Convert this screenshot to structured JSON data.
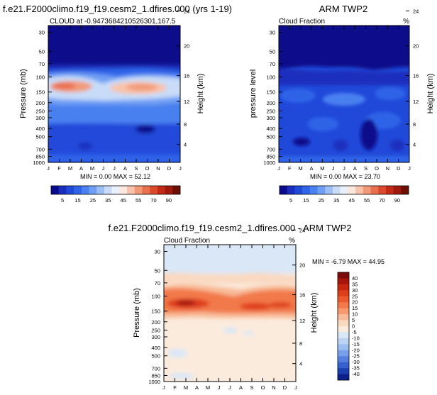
{
  "figure": {
    "titles": {
      "model": "f.e21.F2000climo.f19_f19.cesm2_1.dfires.000 (yrs 1-19)",
      "obs": "ARM TWP2",
      "diff": "f.e21.F2000climo.f19_f19.cesm2_1.dfires.000 - ARM TWP2"
    }
  },
  "chart_data": [
    {
      "type": "heatmap",
      "title": "f.e21.F2000climo.f19_f19.cesm2_1.dfires.000 (yrs 1-19)",
      "subtitle_left": "CLOUD at -0.9473684210526301,167.5",
      "subtitle_right": "",
      "ylabel": "Pressure (mb)",
      "y2label": "Height (km)",
      "x": [
        "J",
        "F",
        "M",
        "A",
        "M",
        "J",
        "J",
        "A",
        "S",
        "O",
        "N",
        "D",
        "J"
      ],
      "pressure_ticks": [
        30,
        50,
        70,
        100,
        150,
        200,
        250,
        300,
        400,
        500,
        700,
        850,
        1000
      ],
      "height_ticks": [
        24,
        20,
        16,
        12,
        8,
        4
      ],
      "stats": "MIN =  0.00 MAX =  52.12",
      "colorbar": {
        "labels": [
          "5",
          "15",
          "25",
          "35",
          "45",
          "55",
          "70",
          "90"
        ],
        "colors": [
          "#0a0a8c",
          "#1a2ebd",
          "#2049d9",
          "#2f63e8",
          "#4a80f0",
          "#6f9ff4",
          "#9dbff6",
          "#c8dcf8",
          "#e8f0fb",
          "#fbe7dc",
          "#f8c3aa",
          "#f29a78",
          "#e9704f",
          "#dc4a2e",
          "#c32a16",
          "#9e1a0c",
          "#6e0f06"
        ]
      }
    },
    {
      "type": "heatmap",
      "title": "ARM TWP2",
      "subtitle_left": "Cloud Fraction",
      "subtitle_right": "%",
      "ylabel": "pressure level",
      "y2label": "Height (km)",
      "x": [
        "J",
        "F",
        "M",
        "A",
        "M",
        "J",
        "J",
        "A",
        "S",
        "O",
        "N",
        "D",
        "J"
      ],
      "pressure_ticks": [
        30,
        50,
        70,
        100,
        150,
        200,
        250,
        300,
        400,
        500,
        700,
        850,
        1000
      ],
      "height_ticks": [
        24,
        20,
        16,
        12,
        8,
        4
      ],
      "stats": "MIN =  0.00 MAX =  23.70",
      "colorbar": {
        "labels": [
          "5",
          "15",
          "25",
          "35",
          "45",
          "55",
          "70",
          "90"
        ],
        "colors": [
          "#0a0a8c",
          "#1a2ebd",
          "#2049d9",
          "#2f63e8",
          "#4a80f0",
          "#6f9ff4",
          "#9dbff6",
          "#c8dcf8",
          "#e8f0fb",
          "#fbe7dc",
          "#f8c3aa",
          "#f29a78",
          "#e9704f",
          "#dc4a2e",
          "#c32a16",
          "#9e1a0c",
          "#6e0f06"
        ]
      }
    },
    {
      "type": "heatmap",
      "title": "f.e21.F2000climo.f19_f19.cesm2_1.dfires.000 - ARM TWP2",
      "subtitle_left": "Cloud Fraction",
      "subtitle_right": "%",
      "ylabel": "Pressure (mb)",
      "y2label": "Height (km)",
      "x": [
        "J",
        "F",
        "M",
        "A",
        "M",
        "J",
        "J",
        "A",
        "S",
        "O",
        "N",
        "D",
        "J"
      ],
      "pressure_ticks": [
        30,
        50,
        70,
        100,
        150,
        200,
        250,
        300,
        400,
        500,
        700,
        850,
        1000
      ],
      "height_ticks": [
        24,
        20,
        16,
        12,
        8,
        4
      ],
      "stats": "MIN = -6.79 MAX =  44.95",
      "colorbar": {
        "labels": [
          "40",
          "35",
          "30",
          "25",
          "20",
          "15",
          "10",
          "5",
          "0",
          "-5",
          "-10",
          "-15",
          "-20",
          "-25",
          "-30",
          "-35",
          "-40"
        ],
        "colors": [
          "#7a0d0a",
          "#a5160c",
          "#c8260f",
          "#de3e1c",
          "#eb5a2f",
          "#f2794a",
          "#f69a6e",
          "#f8bb98",
          "#fad9c1",
          "#fbebdd",
          "#d9e7f6",
          "#bcd3f3",
          "#9bbdf0",
          "#789fe9",
          "#5580de",
          "#3461cd",
          "#1c3fb0",
          "#0d1f8a"
        ]
      }
    }
  ]
}
